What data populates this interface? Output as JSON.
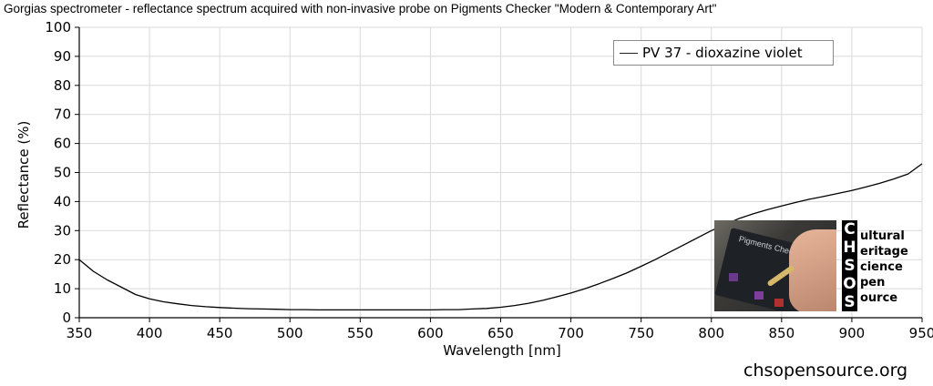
{
  "chart_data": {
    "type": "line",
    "title": "Gorgias spectrometer - reflectance spectrum acquired with non-invasive probe on Pigments Checker \"Modern & Contemporary Art\"",
    "xlabel": "Wavelength [nm]",
    "ylabel": "Reflectance (%)",
    "xlim": [
      350,
      950
    ],
    "ylim": [
      0,
      100
    ],
    "x_ticks": [
      "350",
      "400",
      "450",
      "500",
      "550",
      "600",
      "650",
      "700",
      "750",
      "800",
      "850",
      "900",
      "950"
    ],
    "y_ticks": [
      "0",
      "10",
      "20",
      "30",
      "40",
      "50",
      "60",
      "70",
      "80",
      "90",
      "100"
    ],
    "grid": true,
    "legend_position": "top-right",
    "series": [
      {
        "name": "PV 37 - dioxazine violet",
        "color": "#000000",
        "x": [
          350,
          360,
          370,
          380,
          390,
          400,
          410,
          420,
          430,
          440,
          450,
          460,
          470,
          480,
          490,
          500,
          510,
          520,
          530,
          540,
          550,
          560,
          570,
          580,
          590,
          600,
          610,
          620,
          630,
          640,
          650,
          660,
          670,
          680,
          690,
          700,
          710,
          720,
          730,
          740,
          750,
          760,
          770,
          780,
          790,
          800,
          810,
          820,
          830,
          840,
          850,
          860,
          870,
          880,
          890,
          900,
          910,
          920,
          930,
          940,
          950
        ],
        "y": [
          20,
          16,
          13,
          10.5,
          8,
          6.5,
          5.5,
          4.8,
          4.2,
          3.8,
          3.5,
          3.3,
          3.1,
          3.0,
          2.9,
          2.8,
          2.8,
          2.7,
          2.7,
          2.7,
          2.7,
          2.7,
          2.7,
          2.7,
          2.7,
          2.7,
          2.8,
          2.8,
          3.0,
          3.2,
          3.6,
          4.2,
          5.0,
          6.0,
          7.2,
          8.5,
          10.0,
          11.7,
          13.5,
          15.5,
          17.7,
          20.0,
          22.5,
          25.0,
          27.5,
          30.0,
          32.2,
          34.2,
          35.8,
          37.2,
          38.5,
          39.7,
          40.8,
          41.8,
          42.8,
          43.8,
          45.0,
          46.3,
          47.8,
          49.5,
          53.0
        ]
      }
    ]
  },
  "logo": {
    "photo_caption": "Pigments Checker",
    "letters": [
      "C",
      "H",
      "S",
      "O",
      "S"
    ],
    "words": [
      "ultural",
      "eritage",
      "cience",
      "pen",
      "ource"
    ]
  },
  "website": "chsopensource.org"
}
